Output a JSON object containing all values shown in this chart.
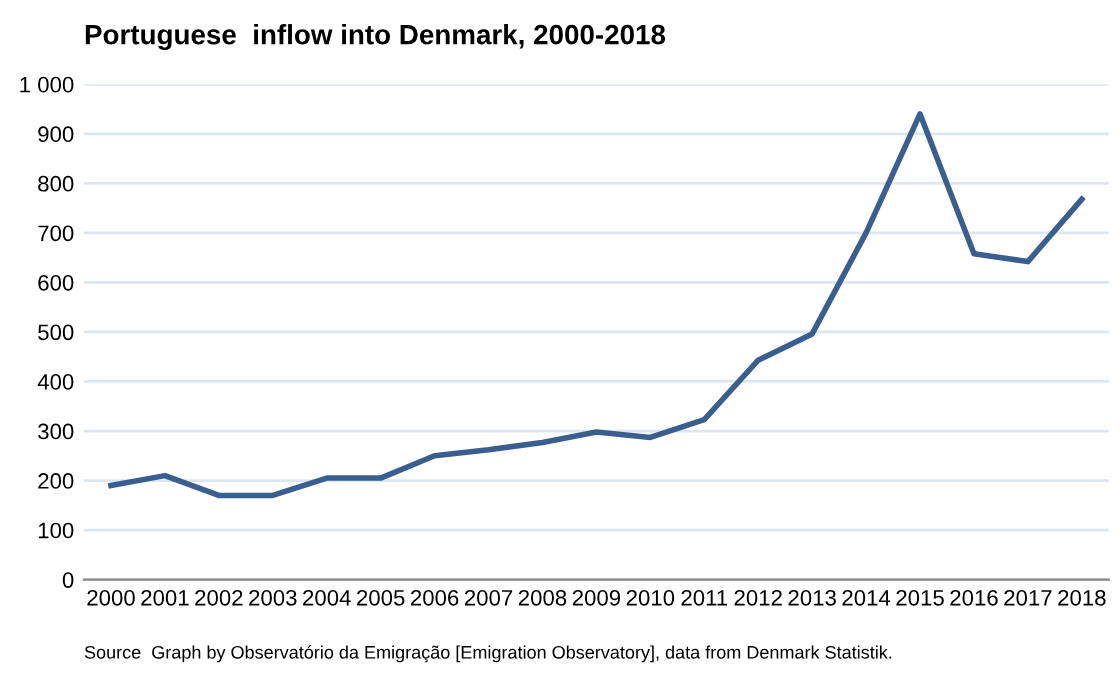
{
  "chart_data": {
    "type": "line",
    "title": "Portuguese  inflow into Denmark, 2000-2018",
    "categories": [
      "2000",
      "2001",
      "2002",
      "2003",
      "2004",
      "2005",
      "2006",
      "2007",
      "2008",
      "2009",
      "2010",
      "2011",
      "2012",
      "2013",
      "2014",
      "2015",
      "2016",
      "2017",
      "2018"
    ],
    "series": [
      {
        "color": "#3a5f8f",
        "values": [
          190,
          210,
          170,
          170,
          205,
          205,
          250,
          262,
          277,
          298,
          287,
          323,
          443,
          496,
          700,
          940,
          658,
          642,
          768
        ]
      }
    ],
    "ylim": [
      0,
      1000
    ],
    "yticks": [
      0,
      100,
      200,
      300,
      400,
      500,
      600,
      700,
      800,
      900,
      {
        "value": 1000,
        "label": "1 000"
      }
    ],
    "grid": "y",
    "legend": false,
    "marker": "none",
    "line_style": "solid",
    "annotations": [
      "Source  Graph by Observatório da Emigração [Emigration Observatory], data from Denmark Statistik."
    ]
  }
}
